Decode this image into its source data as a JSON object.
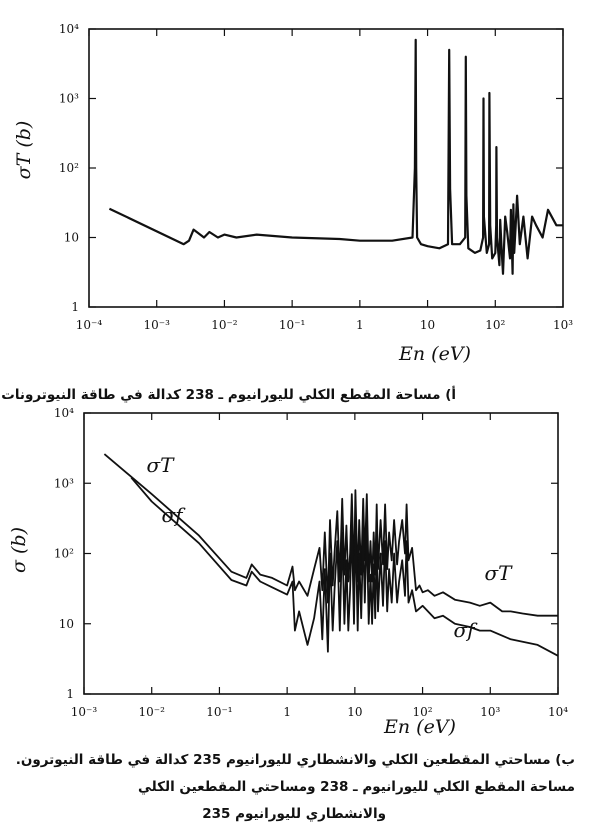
{
  "chart_data": [
    {
      "type": "line",
      "panel": "top",
      "xscale": "log",
      "yscale": "log",
      "xlim": [
        0.0001,
        1000
      ],
      "ylim": [
        1,
        10000
      ],
      "xlabel": "En (eV)",
      "ylabel": "σT (b)",
      "xticks": [
        "10⁻⁴",
        "10⁻³",
        "10⁻²",
        "10⁻¹",
        "1",
        "10",
        "10²",
        "10³"
      ],
      "yticks": [
        "1",
        "10",
        "10²",
        "10³",
        "10⁴"
      ],
      "series": [
        {
          "x": [
            0.0002,
            0.0025,
            0.003,
            0.0035,
            0.005,
            0.006,
            0.008,
            0.01,
            0.015,
            0.03,
            0.1,
            0.5,
            1,
            3,
            6,
            6.5,
            6.67,
            6.8,
            7,
            8,
            10,
            15,
            20,
            20.9,
            21.5,
            23,
            30,
            36,
            36.7,
            37.5,
            40,
            50,
            60,
            66,
            67,
            68,
            75,
            81,
            82,
            84,
            90,
            100,
            103,
            104,
            106,
            115,
            118,
            125,
            130,
            140,
            150,
            165,
            170,
            180,
            185,
            190,
            200,
            210,
            230,
            260,
            300,
            350,
            400,
            500,
            600,
            800,
            1000
          ],
          "values": [
            26,
            8,
            9,
            13,
            10,
            12,
            10,
            11,
            10,
            11,
            10,
            9.5,
            9,
            9,
            10,
            100,
            7000,
            100,
            10,
            8,
            7.5,
            7,
            8,
            5000,
            50,
            8,
            8,
            10,
            4000,
            40,
            7,
            6,
            6.5,
            10,
            1000,
            20,
            6,
            8,
            1200,
            15,
            5,
            6,
            15,
            200,
            10,
            4,
            18,
            6,
            3,
            20,
            12,
            5,
            25,
            3,
            30,
            6,
            15,
            40,
            8,
            20,
            5,
            20,
            15,
            10,
            25,
            15,
            15
          ]
        }
      ],
      "caption": "أ) مساحة المقطع الكلي لليورانيوم ـ 238 كدالة في طاقة النيوترونات."
    },
    {
      "type": "line",
      "panel": "bottom",
      "xscale": "log",
      "yscale": "log",
      "xlim": [
        0.001,
        10000
      ],
      "ylim": [
        1,
        10000
      ],
      "xlabel": "En (eV)",
      "ylabel": "σ (b)",
      "xticks": [
        "10⁻³",
        "10⁻²",
        "10⁻¹",
        "1",
        "10",
        "10²",
        "10³",
        "10⁴"
      ],
      "yticks": [
        "1",
        "10",
        "10²",
        "10³",
        "10⁴"
      ],
      "series": [
        {
          "name": "σT",
          "x": [
            0.002,
            0.01,
            0.05,
            0.15,
            0.25,
            0.3,
            0.4,
            0.6,
            1.0,
            1.2,
            1.3,
            1.5,
            2.0,
            2.5,
            3.0,
            3.3,
            3.6,
            4.0,
            4.3,
            4.7,
            5.0,
            5.5,
            6.0,
            6.5,
            7.0,
            7.5,
            8.0,
            8.5,
            9.0,
            9.7,
            10.2,
            11.0,
            11.6,
            12.4,
            13.3,
            14,
            15,
            16,
            17,
            18,
            19,
            20,
            21,
            22,
            24,
            26,
            28,
            30,
            32,
            35,
            38,
            42,
            45,
            50,
            55,
            58,
            62,
            70,
            80,
            90,
            100,
            120,
            150,
            200,
            300,
            500,
            700,
            1000,
            1500,
            2000,
            3000,
            5000,
            10000
          ],
          "values": [
            2600,
            700,
            180,
            55,
            45,
            70,
            50,
            45,
            35,
            65,
            30,
            40,
            25,
            60,
            120,
            30,
            200,
            20,
            300,
            35,
            100,
            400,
            40,
            600,
            50,
            250,
            40,
            100,
            700,
            45,
            800,
            40,
            300,
            50,
            600,
            80,
            700,
            40,
            150,
            40,
            200,
            50,
            500,
            60,
            300,
            70,
            500,
            60,
            200,
            80,
            300,
            70,
            150,
            300,
            100,
            500,
            80,
            120,
            30,
            35,
            28,
            30,
            25,
            28,
            22,
            20,
            18,
            20,
            15,
            15,
            14,
            13,
            13
          ]
        },
        {
          "name": "σf",
          "x": [
            0.005,
            0.01,
            0.05,
            0.15,
            0.25,
            0.3,
            0.4,
            0.6,
            1.0,
            1.2,
            1.3,
            1.5,
            2.0,
            2.5,
            3.0,
            3.3,
            3.6,
            4.0,
            4.3,
            4.7,
            5.0,
            5.5,
            6.0,
            6.5,
            7.0,
            7.5,
            8.0,
            8.5,
            9.0,
            9.7,
            10.2,
            11.0,
            11.6,
            12.4,
            13.3,
            14,
            15,
            16,
            17,
            18,
            19,
            20,
            21,
            22,
            24,
            26,
            28,
            30,
            32,
            35,
            38,
            42,
            45,
            50,
            55,
            58,
            62,
            70,
            80,
            100,
            150,
            200,
            300,
            500,
            700,
            1000,
            2000,
            5000,
            10000
          ],
          "values": [
            1200,
            550,
            140,
            42,
            35,
            55,
            40,
            33,
            26,
            40,
            8,
            15,
            5,
            12,
            40,
            6,
            60,
            4,
            100,
            8,
            30,
            150,
            8,
            200,
            10,
            80,
            8,
            30,
            250,
            10,
            300,
            8,
            100,
            12,
            200,
            20,
            250,
            10,
            50,
            10,
            70,
            12,
            150,
            15,
            100,
            18,
            150,
            15,
            60,
            20,
            100,
            20,
            40,
            80,
            25,
            150,
            20,
            30,
            15,
            18,
            12,
            13,
            10,
            9,
            8,
            8,
            6,
            5,
            3.5
          ]
        }
      ],
      "curve_labels": {
        "total": "σT",
        "fission": "σf"
      },
      "caption": "ب) مساحتي المقطعين الكلي والانشطاري لليورانيوم 235 كدالة في طاقة النيوترون.",
      "caption_lines": [
        "مساحة المقطع الكلي لليورانيوم ـ 238 ومساحتي المقطعين الكلي",
        "والانشطاري لليورانيوم 235"
      ]
    }
  ]
}
